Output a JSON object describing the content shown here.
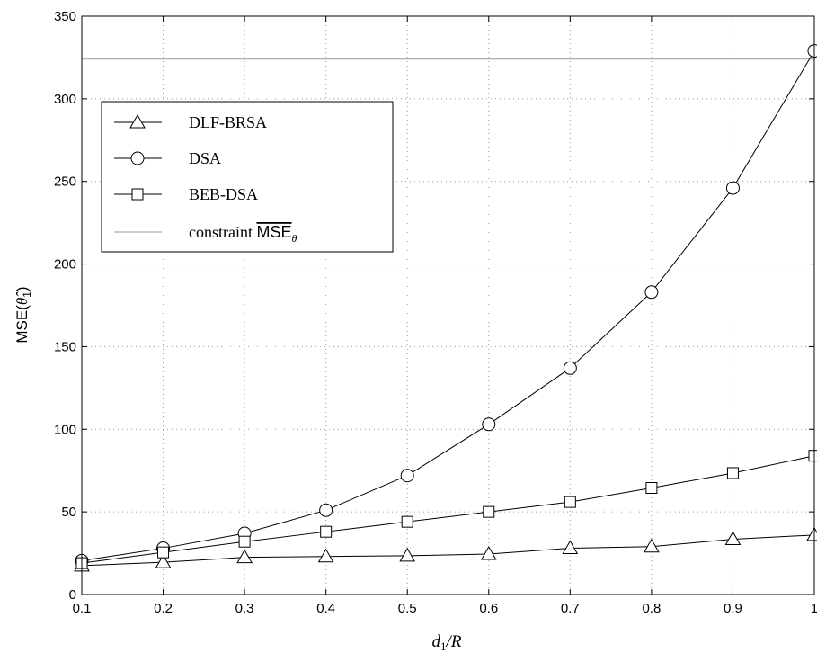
{
  "chart_data": {
    "type": "line",
    "xlabel": "d1/R",
    "ylabel": "MSE(θ̂1)",
    "xlim": [
      0.1,
      1
    ],
    "ylim": [
      0,
      350
    ],
    "xticks": [
      "0.1",
      "0.2",
      "0.3",
      "0.4",
      "0.5",
      "0.6",
      "0.7",
      "0.8",
      "0.9",
      "1"
    ],
    "yticks": [
      "0",
      "50",
      "100",
      "150",
      "200",
      "250",
      "300",
      "350"
    ],
    "grid": true,
    "legend_position": "upper-left",
    "x": [
      0.1,
      0.2,
      0.3,
      0.4,
      0.5,
      0.6,
      0.7,
      0.8,
      0.9,
      1.0
    ],
    "series": [
      {
        "name": "DLF-BRSA",
        "marker": "triangle",
        "color": "#000000",
        "values": [
          17.5,
          19.5,
          22.5,
          23,
          23.5,
          24.5,
          28,
          29,
          33.5,
          36
        ]
      },
      {
        "name": "DSA",
        "marker": "circle",
        "color": "#000000",
        "values": [
          20.5,
          28,
          37,
          51,
          72,
          103,
          137,
          183,
          246,
          329
        ]
      },
      {
        "name": "BEB-DSA",
        "marker": "square",
        "color": "#000000",
        "values": [
          19,
          25.5,
          32,
          38,
          44,
          50,
          56,
          64.5,
          73.5,
          84
        ]
      }
    ],
    "constraint": {
      "name": "constraint MSEθ",
      "value": 324,
      "color": "#9a9a9a"
    }
  }
}
